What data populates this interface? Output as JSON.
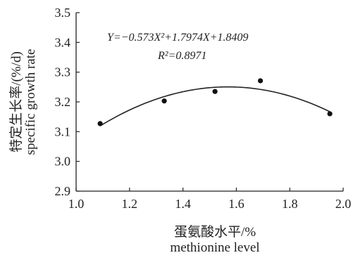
{
  "chart_data": {
    "type": "scatter",
    "xlabel_cn": "蛋氨酸水平/%",
    "xlabel_en": "methionine level",
    "ylabel_cn": "特定生长率/(%/d)",
    "ylabel_en": "specific growth rate",
    "xlim": [
      1.0,
      2.0
    ],
    "ylim": [
      2.9,
      3.5
    ],
    "xticks": [
      "1.0",
      "1.2",
      "1.4",
      "1.6",
      "1.8",
      "2.0"
    ],
    "yticks": [
      "2.9",
      "3.0",
      "3.1",
      "3.2",
      "3.3",
      "3.4",
      "3.5"
    ],
    "points": [
      {
        "x": 1.09,
        "y": 3.127
      },
      {
        "x": 1.33,
        "y": 3.203
      },
      {
        "x": 1.52,
        "y": 3.235
      },
      {
        "x": 1.69,
        "y": 3.271
      },
      {
        "x": 1.95,
        "y": 3.16
      }
    ],
    "fit": {
      "a": -0.573,
      "b": 1.7974,
      "c": 1.8409,
      "x_range": [
        1.09,
        1.95
      ],
      "equation": "Y=−0.573X²+1.7974X+1.8409",
      "r_squared": "R²=0.8971"
    },
    "grid": false,
    "colors": {
      "marker": "#111111",
      "line": "#222222",
      "axis": "#222222"
    }
  }
}
